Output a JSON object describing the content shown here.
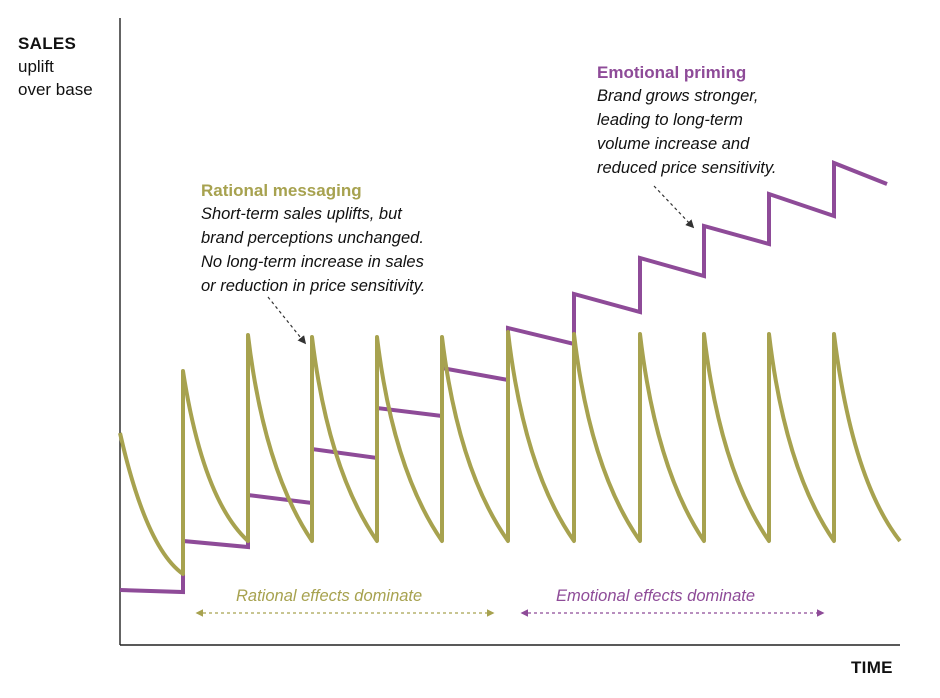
{
  "y_axis": {
    "title": "SALES",
    "sub_lines": [
      "uplift",
      "over base"
    ]
  },
  "x_axis": {
    "title": "TIME"
  },
  "rational": {
    "heading": "Rational messaging",
    "lines": [
      "Short-term sales uplifts, but",
      "brand perceptions unchanged.",
      "No long-term increase in sales",
      "or reduction in price sensitivity."
    ]
  },
  "emotional": {
    "heading": "Emotional priming",
    "lines": [
      "Brand grows stronger,",
      "leading to long-term",
      "volume increase and",
      "reduced price sensitivity."
    ]
  },
  "phases": {
    "rational": "Rational effects dominate",
    "emotional": "Emotional effects dominate"
  },
  "colors": {
    "rational": "#a7a24f",
    "emotional": "#8e4b98",
    "axis": "#222222",
    "arrow": "#333333"
  }
}
